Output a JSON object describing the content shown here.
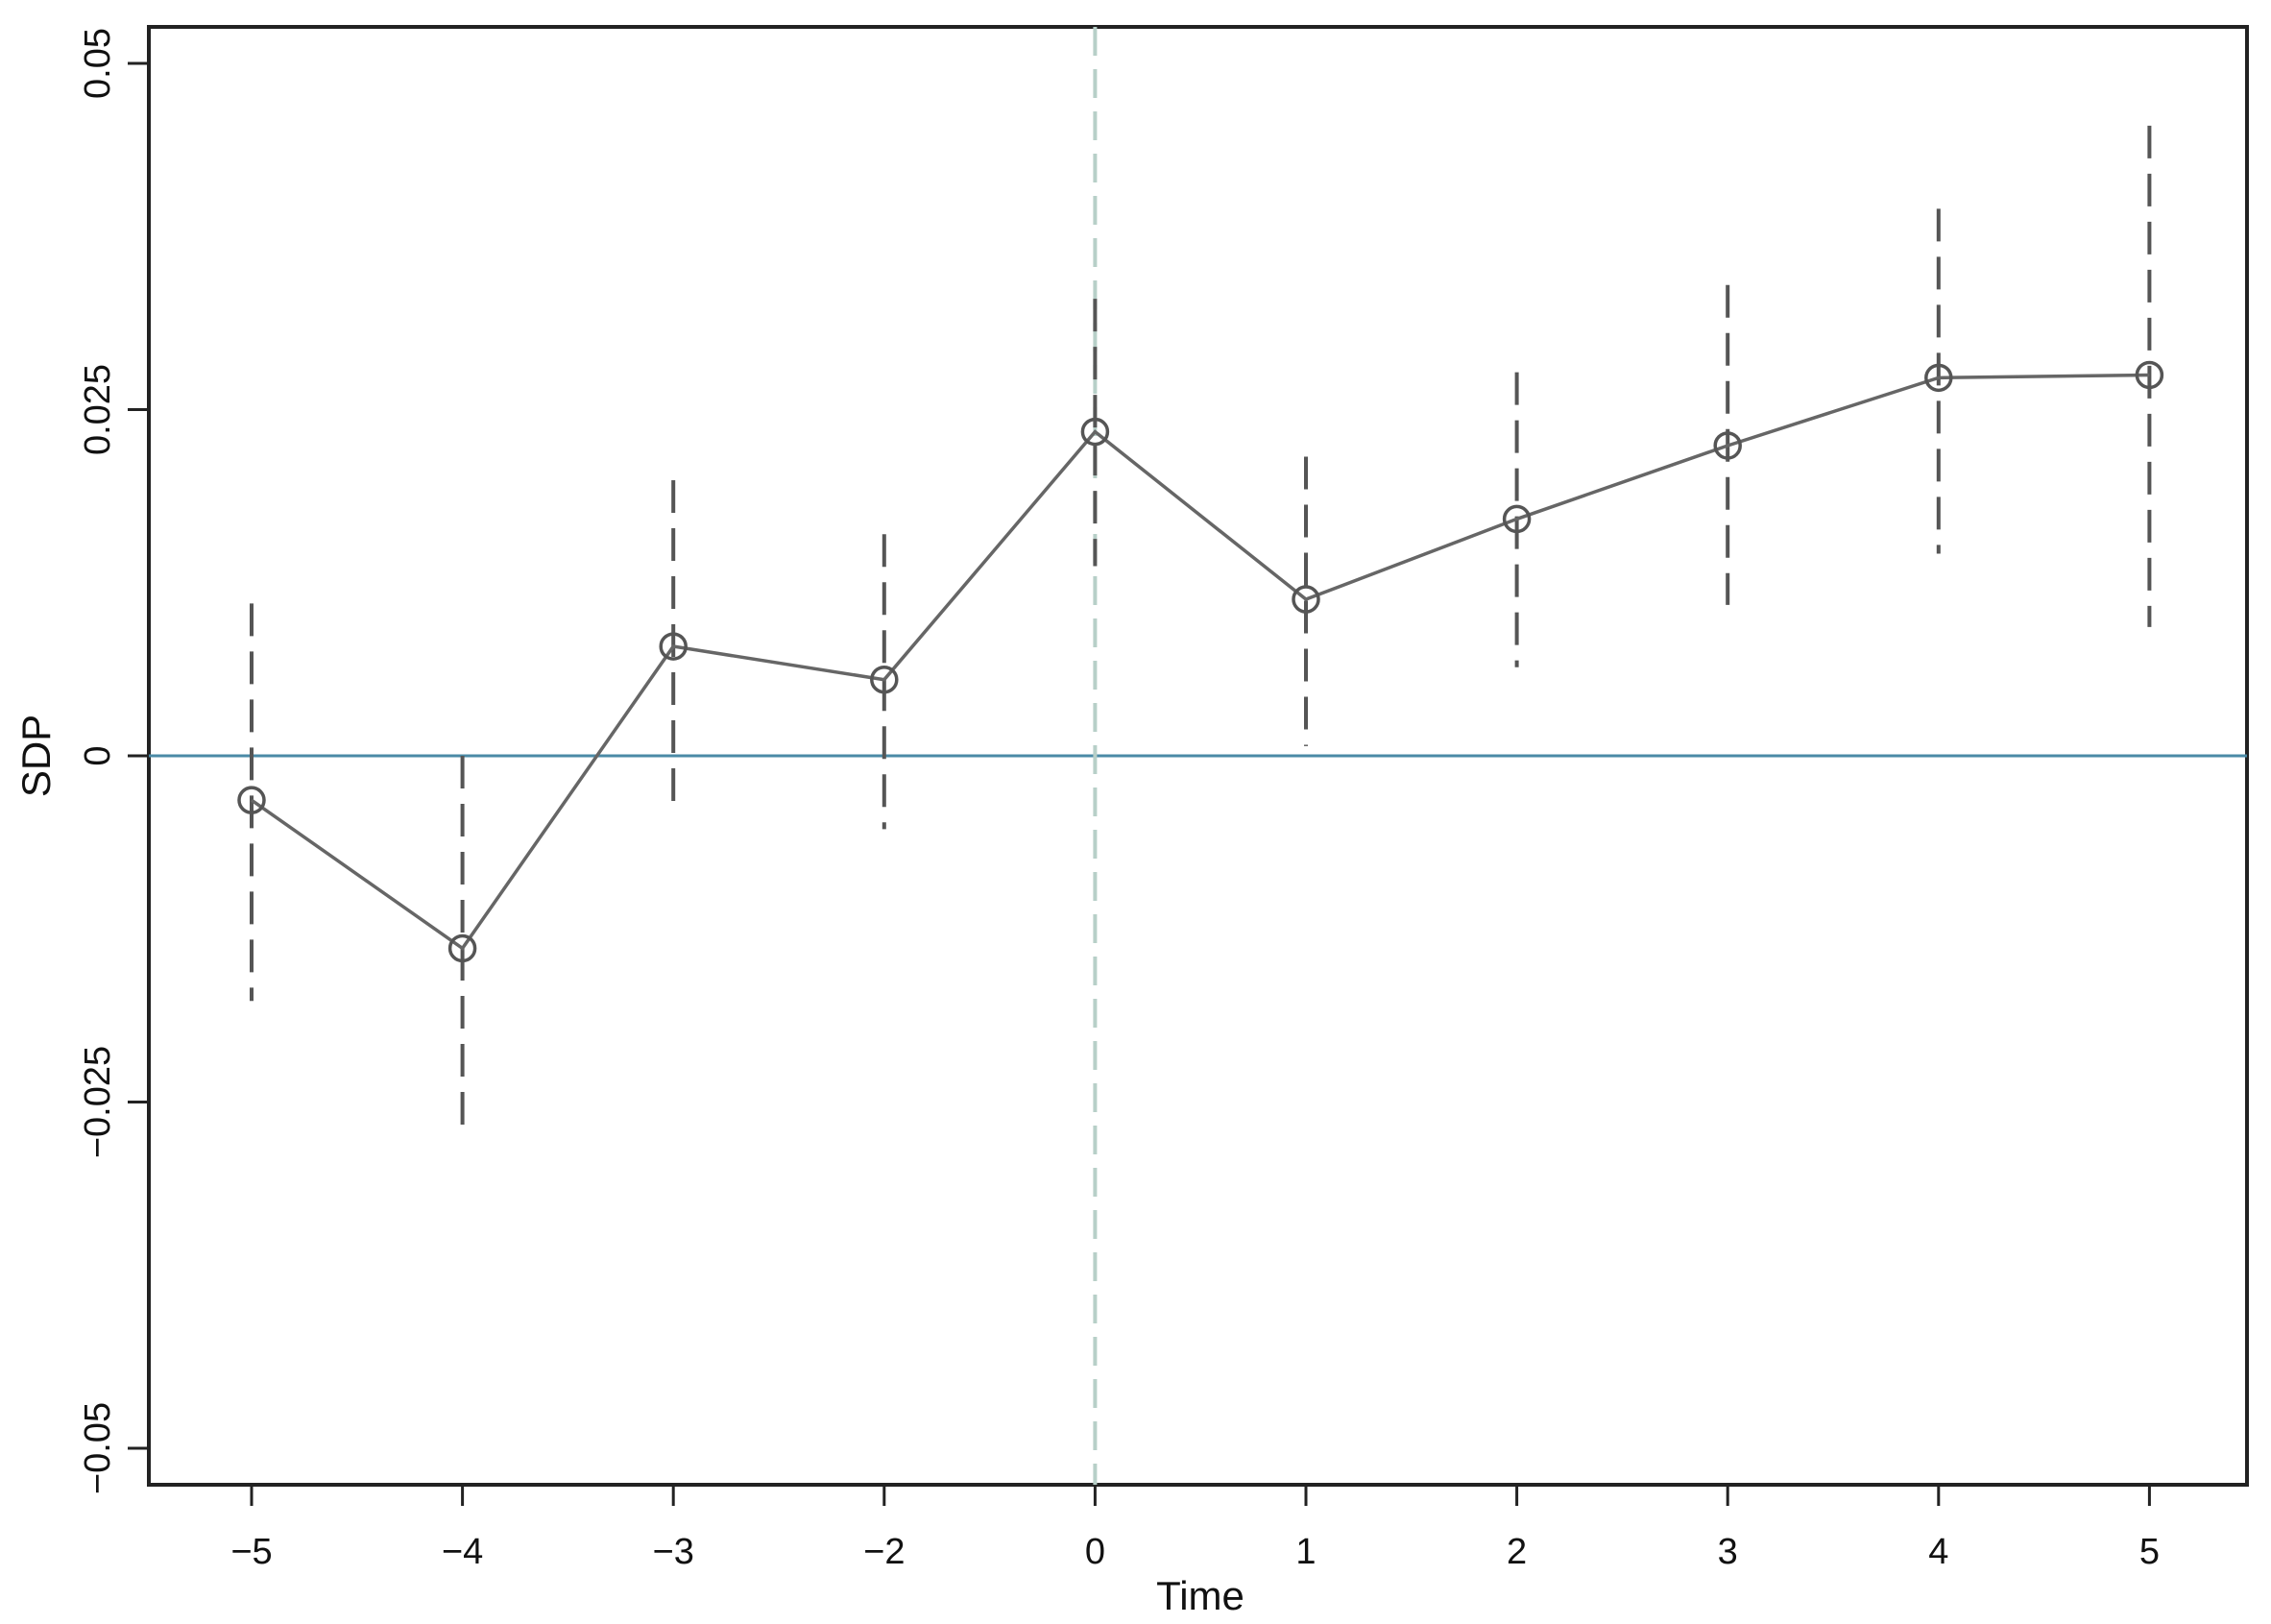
{
  "chart_data": {
    "type": "line",
    "title": "",
    "xlabel": "Time",
    "ylabel": "SDP",
    "x": [
      "-5",
      "-4",
      "-3",
      "-2",
      "0",
      "1",
      "2",
      "3",
      "4",
      "5"
    ],
    "ylim": [
      -0.053,
      0.053
    ],
    "yticks": [
      {
        "value": 0.05,
        "label": "0.05"
      },
      {
        "value": 0.025,
        "label": "0.025"
      },
      {
        "value": 0,
        "label": "0"
      },
      {
        "value": -0.025,
        "label": "−0.025"
      },
      {
        "value": -0.05,
        "label": "−0.05"
      }
    ],
    "xtick_labels": [
      "−5",
      "−4",
      "−3",
      "−2",
      "0",
      "1",
      "2",
      "3",
      "4",
      "5"
    ],
    "series": [
      {
        "estimate": [
          -0.0032,
          -0.0139,
          0.0079,
          0.0055,
          0.0234,
          0.0113,
          0.0171,
          0.0224,
          0.0273,
          0.0275
        ],
        "ci_lower": [
          -0.0177,
          -0.0277,
          -0.0041,
          -0.0053,
          0.0137,
          0.0007,
          0.0064,
          0.0109,
          0.0146,
          0.0093
        ],
        "ci_upper": [
          0.011,
          0.0,
          0.0199,
          0.016,
          0.033,
          0.0216,
          0.0277,
          0.034,
          0.0395,
          0.0455
        ]
      }
    ],
    "reference_lines": {
      "horizontal_zero": true,
      "vertical_event_category": "0"
    },
    "grid": false,
    "legend": "none",
    "colors": {
      "line": "#666666",
      "marker": "#555555",
      "ci": "#555555",
      "zero_line": "#4a8aa6",
      "event_line": "#b7cfc8",
      "axis": "#222222",
      "negative_tick_accent": "#8b2a3a"
    }
  }
}
